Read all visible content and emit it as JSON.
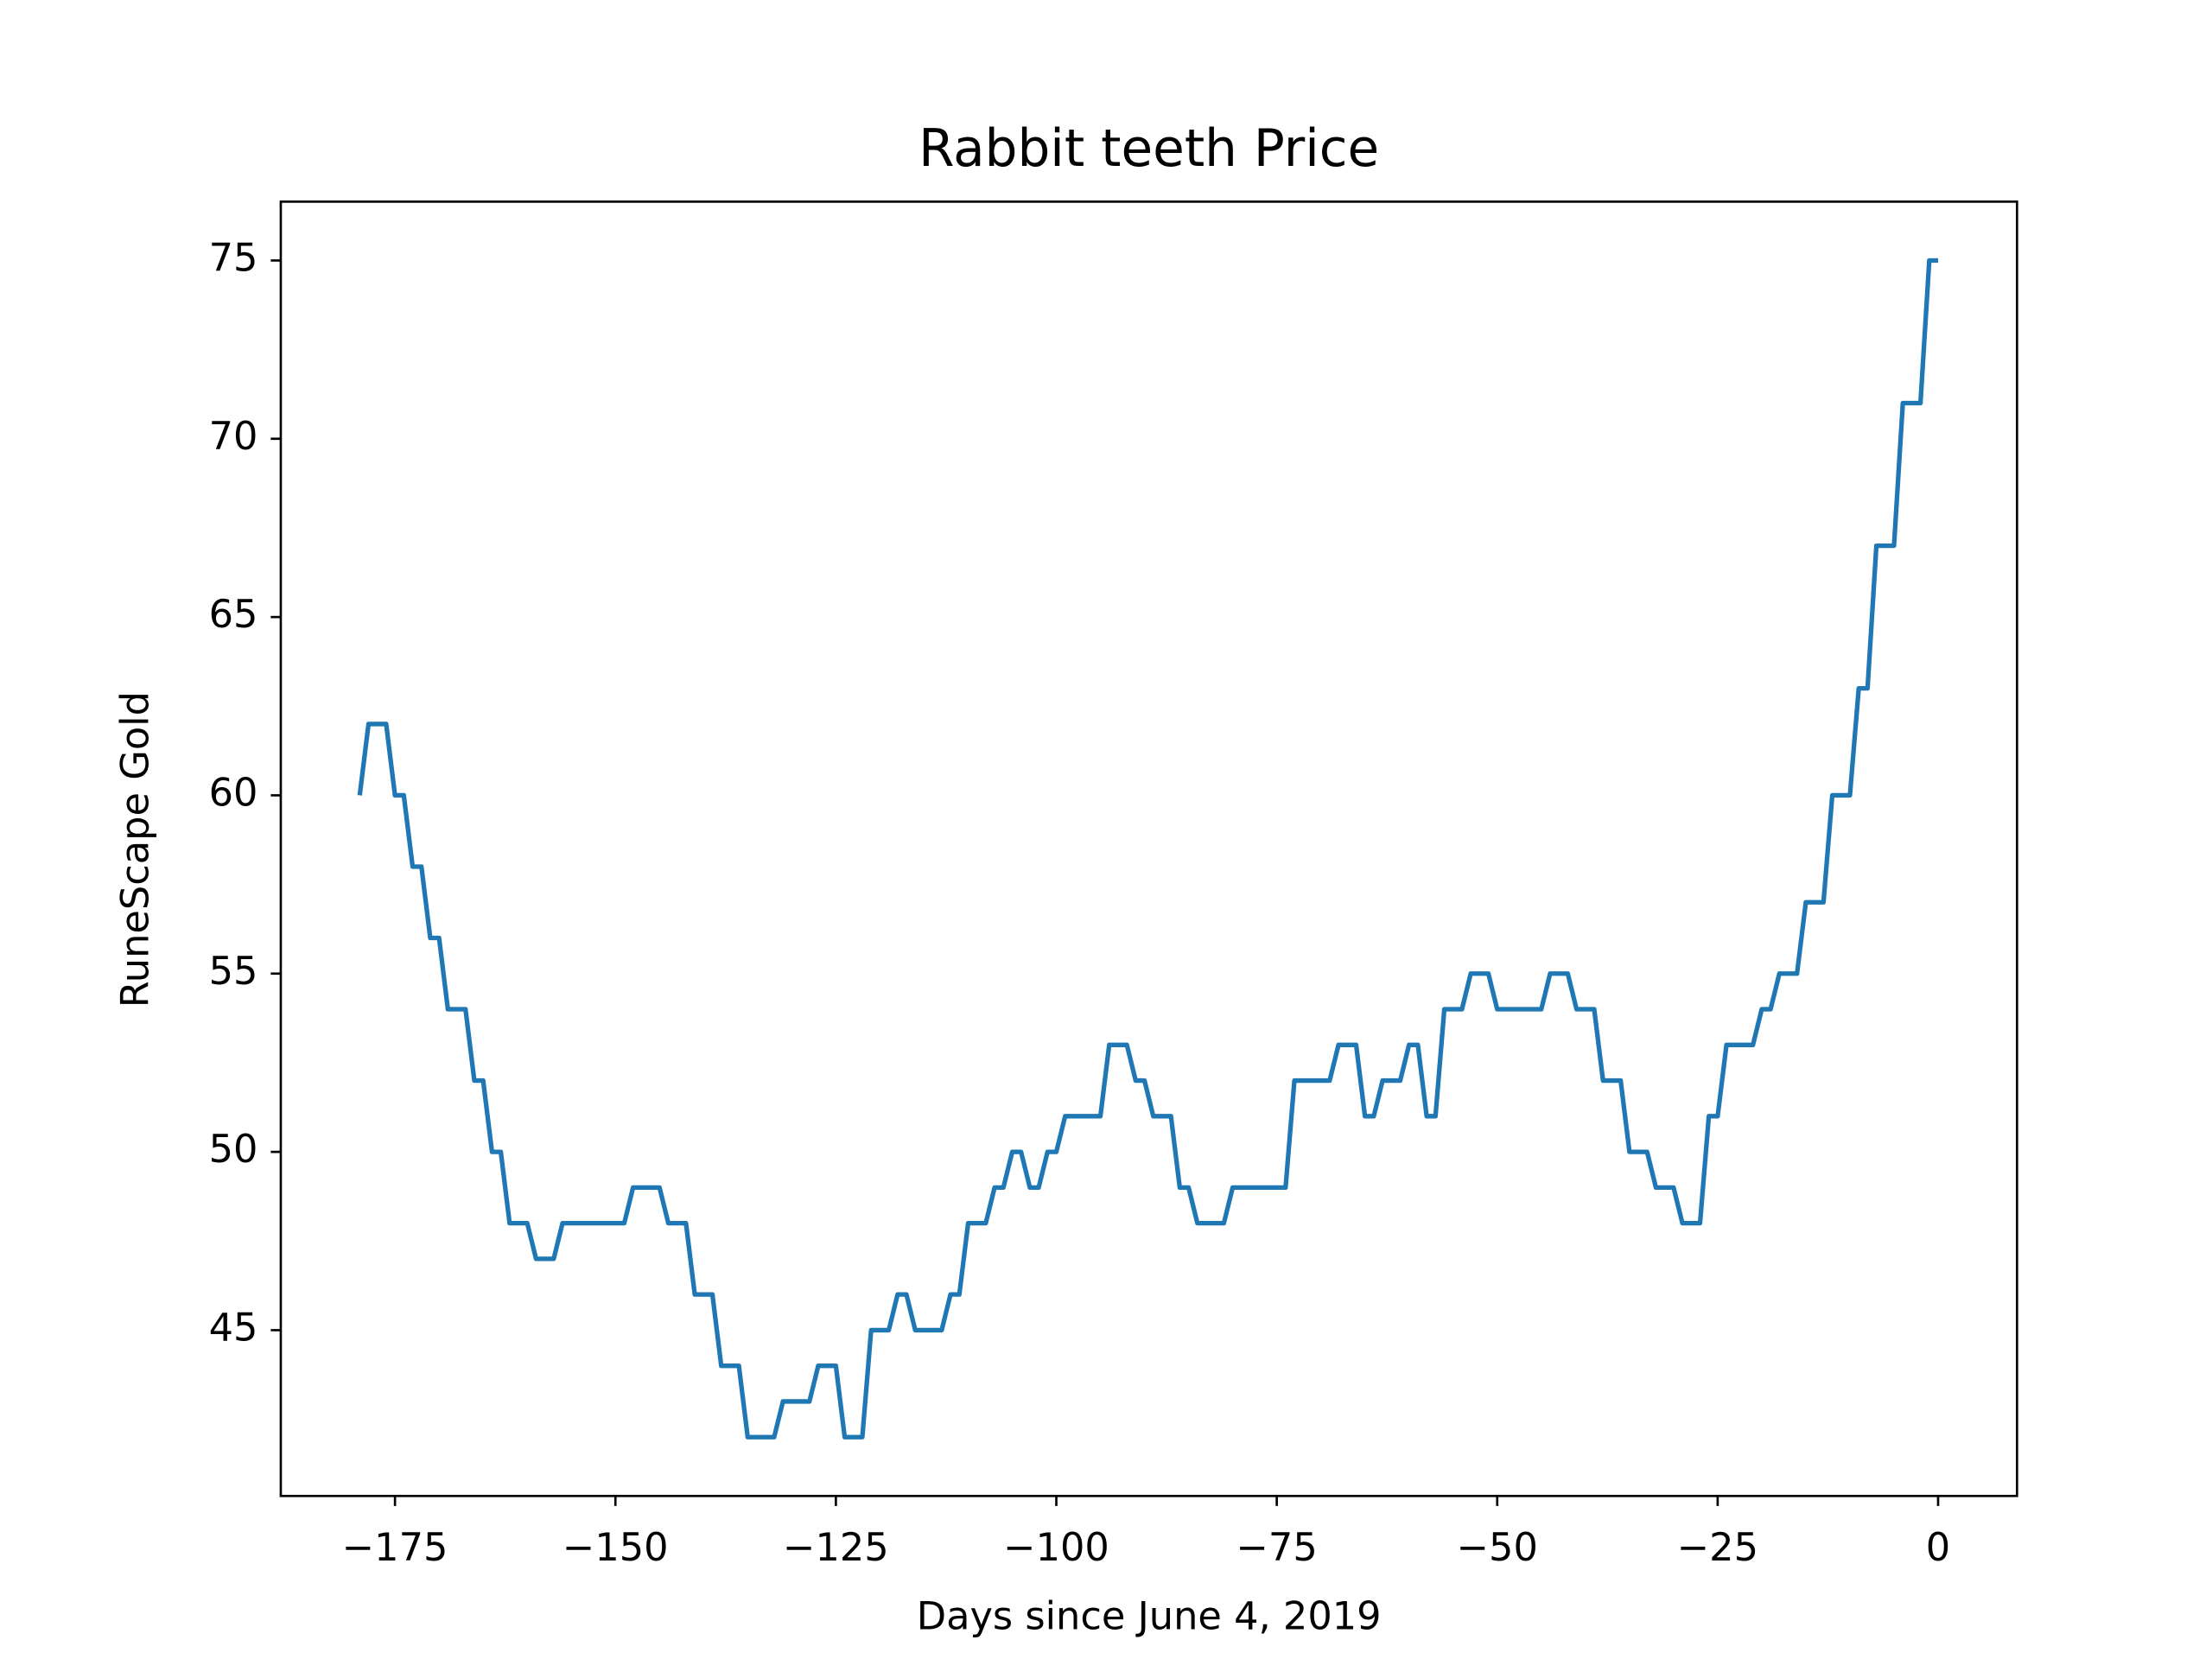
{
  "chart_data": {
    "type": "line",
    "title": "Rabbit teeth Price",
    "x_label": "Days since June 4, 2019",
    "y_label": "RuneScape Gold",
    "color": "#1f77b4",
    "grid": false,
    "x": [
      -179,
      -178,
      -177,
      -176,
      -175,
      -174,
      -173,
      -172,
      -171,
      -170,
      -169,
      -168,
      -167,
      -166,
      -165,
      -164,
      -163,
      -162,
      -161,
      -160,
      -159,
      -158,
      -157,
      -156,
      -155,
      -154,
      -153,
      -152,
      -151,
      -150,
      -149,
      -148,
      -147,
      -146,
      -145,
      -144,
      -143,
      -142,
      -141,
      -140,
      -139,
      -138,
      -137,
      -136,
      -135,
      -134,
      -133,
      -132,
      -131,
      -130,
      -129,
      -128,
      -127,
      -126,
      -125,
      -124,
      -123,
      -122,
      -121,
      -120,
      -119,
      -118,
      -117,
      -116,
      -115,
      -114,
      -113,
      -112,
      -111,
      -110,
      -109,
      -108,
      -107,
      -106,
      -105,
      -104,
      -103,
      -102,
      -101,
      -100,
      -99,
      -98,
      -97,
      -96,
      -95,
      -94,
      -93,
      -92,
      -91,
      -90,
      -89,
      -88,
      -87,
      -86,
      -85,
      -84,
      -83,
      -82,
      -81,
      -80,
      -79,
      -78,
      -77,
      -76,
      -75,
      -74,
      -73,
      -72,
      -71,
      -70,
      -69,
      -68,
      -67,
      -66,
      -65,
      -64,
      -63,
      -62,
      -61,
      -60,
      -59,
      -58,
      -57,
      -56,
      -55,
      -54,
      -53,
      -52,
      -51,
      -50,
      -49,
      -48,
      -47,
      -46,
      -45,
      -44,
      -43,
      -42,
      -41,
      -40,
      -39,
      -38,
      -37,
      -36,
      -35,
      -34,
      -33,
      -32,
      -31,
      -30,
      -29,
      -28,
      -27,
      -26,
      -25,
      -24,
      -23,
      -22,
      -21,
      -20,
      -19,
      -18,
      -17,
      -16,
      -15,
      -14,
      -13,
      -12,
      -11,
      -10,
      -9,
      -8,
      -7,
      -6,
      -5,
      -4,
      -3,
      -2,
      -1,
      0
    ],
    "values": [
      60,
      62,
      62,
      62,
      60,
      60,
      58,
      58,
      56,
      56,
      54,
      54,
      54,
      52,
      52,
      50,
      50,
      48,
      48,
      48,
      47,
      47,
      47,
      48,
      48,
      48,
      48,
      48,
      48,
      48,
      48,
      49,
      49,
      49,
      49,
      48,
      48,
      48,
      46,
      46,
      46,
      44,
      44,
      44,
      42,
      42,
      42,
      42,
      43,
      43,
      43,
      43,
      44,
      44,
      44,
      42,
      42,
      42,
      45,
      45,
      45,
      46,
      46,
      45,
      45,
      45,
      45,
      46,
      46,
      48,
      48,
      48,
      49,
      49,
      50,
      50,
      49,
      49,
      50,
      50,
      51,
      51,
      51,
      51,
      51,
      53,
      53,
      53,
      52,
      52,
      51,
      51,
      51,
      49,
      49,
      48,
      48,
      48,
      48,
      49,
      49,
      49,
      49,
      49,
      49,
      49,
      52,
      52,
      52,
      52,
      52,
      53,
      53,
      53,
      51,
      51,
      52,
      52,
      52,
      53,
      53,
      51,
      51,
      54,
      54,
      54,
      55,
      55,
      55,
      54,
      54,
      54,
      54,
      54,
      54,
      55,
      55,
      55,
      54,
      54,
      54,
      52,
      52,
      52,
      50,
      50,
      50,
      49,
      49,
      49,
      48,
      48,
      48,
      51,
      51,
      53,
      53,
      53,
      53,
      54,
      54,
      55,
      55,
      55,
      57,
      57,
      57,
      60,
      60,
      60,
      63,
      63,
      67,
      67,
      67,
      71,
      71,
      71,
      75,
      75
    ],
    "xlim": [
      -187.95,
      8.95
    ],
    "xticks": [
      {
        "value": -175,
        "label": "−175"
      },
      {
        "value": -150,
        "label": "−150"
      },
      {
        "value": -125,
        "label": "−125"
      },
      {
        "value": -100,
        "label": "−100"
      },
      {
        "value": -75,
        "label": "−75"
      },
      {
        "value": -50,
        "label": "−50"
      },
      {
        "value": -25,
        "label": "−25"
      },
      0
    ],
    "ylim": [
      40.35,
      76.65
    ],
    "yticks": [
      45,
      50,
      55,
      60,
      65,
      70,
      75
    ]
  }
}
